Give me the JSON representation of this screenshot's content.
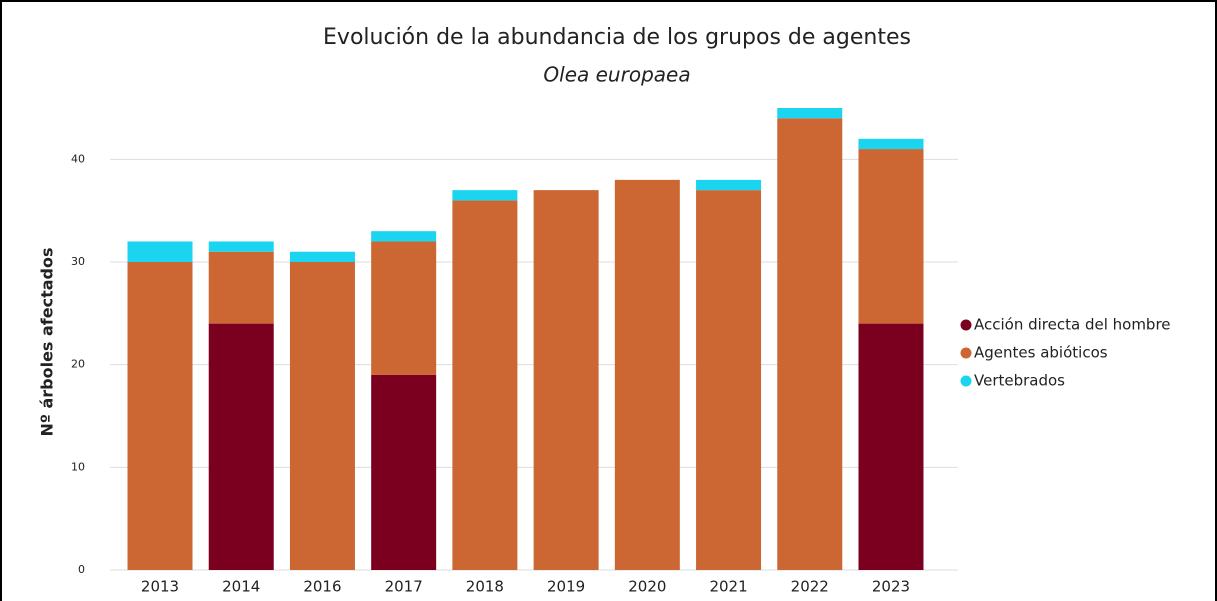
{
  "chart_data": {
    "type": "stacked_bar",
    "title": "Evolución de la abundancia de los grupos de agentes",
    "subtitle": "Olea europaea",
    "y_label": "Nº árboles afectados",
    "categories": [
      "2013",
      "2014",
      "2016",
      "2017",
      "2018",
      "2019",
      "2020",
      "2021",
      "2022",
      "2023"
    ],
    "series": [
      {
        "name": "Acción directa del hombre",
        "color": "#7b0020",
        "values": [
          0,
          24,
          0,
          19,
          0,
          0,
          0,
          0,
          0,
          24
        ]
      },
      {
        "name": "Agentes abióticos",
        "color": "#cc6633",
        "values": [
          30,
          7,
          30,
          13,
          36,
          37,
          38,
          37,
          44,
          17
        ]
      },
      {
        "name": "Vertebrados",
        "color": "#1ad4f0",
        "values": [
          2,
          1,
          1,
          1,
          1,
          0,
          0,
          1,
          1,
          1
        ]
      }
    ],
    "ylim": [
      0,
      45
    ],
    "yticks": [
      0,
      10,
      20,
      30,
      40
    ],
    "grid": true,
    "legend": "right"
  }
}
